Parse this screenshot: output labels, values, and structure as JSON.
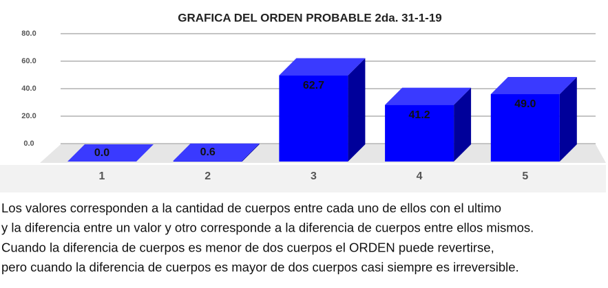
{
  "chart_data": {
    "type": "bar3d",
    "title": "GRAFICA DEL ORDEN PROBABLE 2da. 31-1-19",
    "categories": [
      "1",
      "2",
      "3",
      "4",
      "5"
    ],
    "values": [
      0,
      0.6,
      62.7,
      41.2,
      49
    ],
    "value_labels": [
      "0.0",
      "0.6",
      "62.7",
      "41.2",
      "49.0"
    ],
    "color": "#0000ff",
    "ylim": [
      0,
      80
    ],
    "yticks": [
      {
        "value": 0,
        "label": "0.0"
      },
      {
        "value": 20,
        "label": "20.0"
      },
      {
        "value": 40,
        "label": "40.0"
      },
      {
        "value": 60,
        "label": "60.0"
      },
      {
        "value": 80,
        "label": "80.0"
      }
    ],
    "grid": true,
    "annotations": [
      "Los valores corresponden a la cantidad de cuerpos entre cada uno de ellos con el ultimo",
      "y la diferencia entre un valor y otro corresponde a la diferencia de cuerpos entre ellos mismos.",
      "Cuando la diferencia de cuerpos es menor de dos cuerpos el ORDEN puede revertirse,",
      "pero cuando la diferencia de cuerpos es mayor de dos cuerpos casi siempre es irreversible."
    ]
  }
}
